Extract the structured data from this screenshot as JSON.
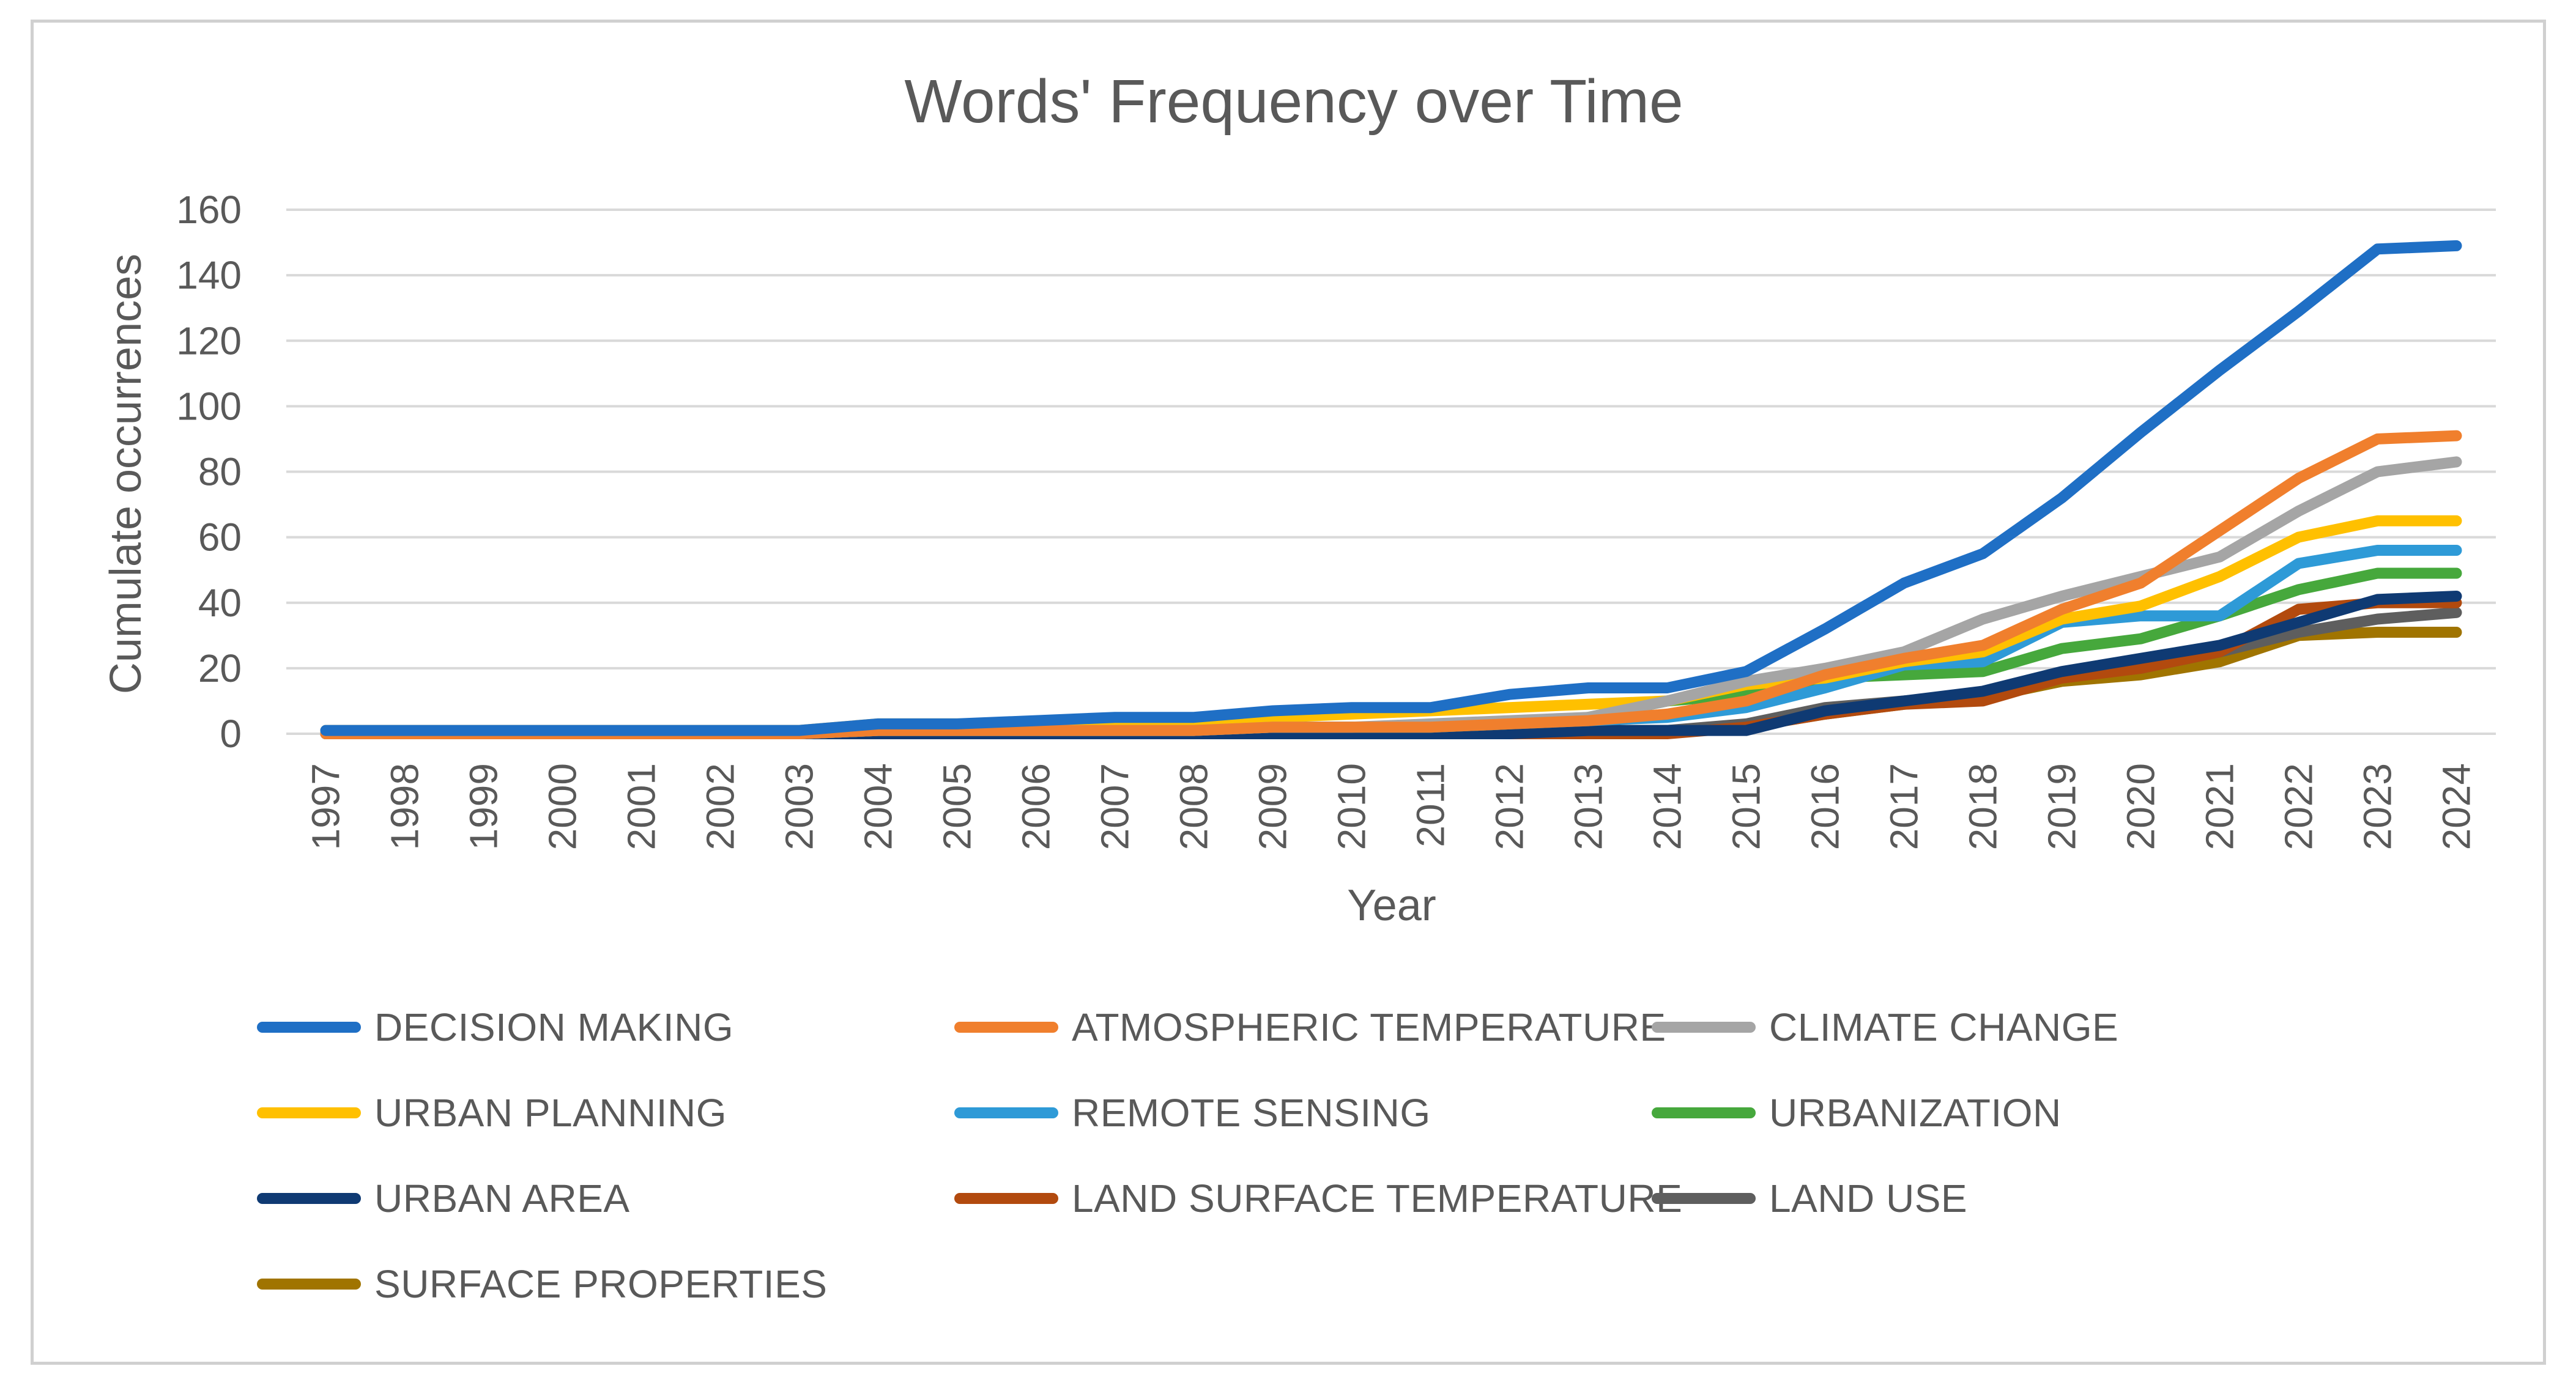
{
  "chart_data": {
    "type": "line",
    "title": "Words' Frequency over Time",
    "xlabel": "Year",
    "ylabel": "Cumulate occurrences",
    "ylim": [
      0,
      160
    ],
    "yticks": [
      0,
      20,
      40,
      60,
      80,
      100,
      120,
      140,
      160
    ],
    "grid": true,
    "legend_position": "bottom",
    "categories": [
      "1997",
      "1998",
      "1999",
      "2000",
      "2001",
      "2002",
      "2003",
      "2004",
      "2005",
      "2006",
      "2007",
      "2008",
      "2009",
      "2010",
      "2011",
      "2012",
      "2013",
      "2014",
      "2015",
      "2016",
      "2017",
      "2018",
      "2019",
      "2020",
      "2021",
      "2022",
      "2023",
      "2024"
    ],
    "series": [
      {
        "name": "DECISION MAKING",
        "color": "#1F6FC5",
        "values": [
          1,
          1,
          1,
          1,
          1,
          1,
          1,
          3,
          3,
          4,
          5,
          5,
          7,
          8,
          8,
          12,
          14,
          14,
          19,
          32,
          46,
          55,
          72,
          92,
          111,
          129,
          148,
          149
        ]
      },
      {
        "name": "ATMOSPHERIC TEMPERATURE",
        "color": "#F07F2D",
        "values": [
          0,
          0,
          0,
          0,
          0,
          0,
          0,
          1,
          1,
          1,
          1,
          1,
          2,
          2,
          2,
          3,
          4,
          6,
          10,
          18,
          23,
          27,
          38,
          46,
          62,
          78,
          90,
          91
        ]
      },
      {
        "name": "CLIMATE CHANGE",
        "color": "#A5A5A5",
        "values": [
          0,
          0,
          0,
          0,
          0,
          0,
          0,
          1,
          1,
          1,
          1,
          1,
          2,
          2,
          3,
          4,
          5,
          10,
          16,
          20,
          25,
          35,
          42,
          48,
          54,
          68,
          80,
          83
        ]
      },
      {
        "name": "URBAN PLANNING",
        "color": "#FFC000",
        "values": [
          1,
          1,
          1,
          1,
          1,
          1,
          1,
          3,
          3,
          3,
          3,
          4,
          5,
          6,
          7,
          8,
          9,
          10,
          15,
          17,
          22,
          25,
          35,
          39,
          48,
          60,
          65,
          65
        ]
      },
      {
        "name": "REMOTE SENSING",
        "color": "#2E9AD7",
        "values": [
          0,
          0,
          0,
          0,
          0,
          0,
          0,
          1,
          1,
          1,
          1,
          1,
          2,
          2,
          2,
          3,
          4,
          5,
          8,
          14,
          21,
          22,
          34,
          36,
          36,
          52,
          56,
          56
        ]
      },
      {
        "name": "URBANIZATION",
        "color": "#46A83C",
        "values": [
          0,
          0,
          0,
          0,
          0,
          0,
          0,
          1,
          1,
          1,
          1,
          1,
          2,
          2,
          2,
          3,
          5,
          10,
          12,
          17,
          18,
          19,
          26,
          29,
          36,
          44,
          49,
          49
        ]
      },
      {
        "name": "URBAN AREA",
        "color": "#0F3A73",
        "values": [
          0,
          0,
          0,
          0,
          0,
          0,
          0,
          0,
          0,
          0,
          0,
          0,
          0,
          0,
          0,
          0,
          1,
          1,
          1,
          7,
          10,
          13,
          19,
          23,
          27,
          34,
          41,
          42
        ]
      },
      {
        "name": "LAND SURFACE TEMPERATURE",
        "color": "#B24A0E",
        "values": [
          0,
          0,
          0,
          0,
          0,
          0,
          0,
          0,
          0,
          0,
          0,
          0,
          0,
          0,
          0,
          0,
          0,
          0,
          2,
          6,
          9,
          10,
          17,
          20,
          25,
          38,
          40,
          40
        ]
      },
      {
        "name": "LAND USE",
        "color": "#5E5E5E",
        "values": [
          0,
          0,
          0,
          0,
          0,
          0,
          0,
          0,
          0,
          0,
          0,
          0,
          0,
          0,
          0,
          0,
          1,
          1,
          3,
          8,
          10,
          12,
          18,
          20,
          25,
          31,
          35,
          37
        ]
      },
      {
        "name": "SURFACE PROPERTIES",
        "color": "#A07400",
        "values": [
          0,
          0,
          0,
          0,
          0,
          0,
          0,
          0,
          0,
          0,
          0,
          0,
          0,
          0,
          0,
          0,
          1,
          1,
          2,
          6,
          9,
          11,
          16,
          18,
          22,
          30,
          31,
          31
        ]
      }
    ]
  }
}
